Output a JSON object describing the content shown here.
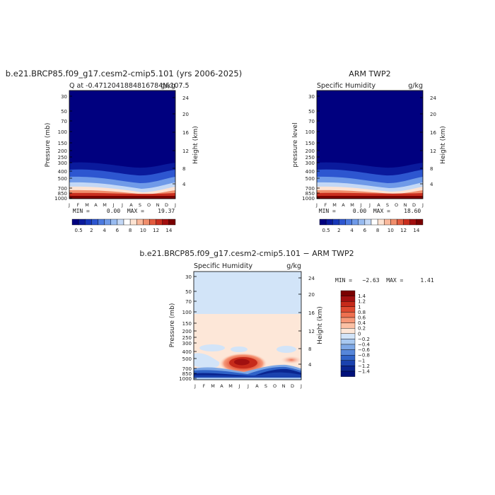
{
  "chart_data": [
    {
      "type": "heatmap",
      "title": "b.e21.BRCP85.f09_g17.cesm2-cmip5.101 (yrs 2006-2025)",
      "left_label": "Q  at  -0.4712041884816784N,107.5",
      "right_label": "g/kg",
      "ylabel": "Pressure (mb)",
      "y2label": "Height (km)",
      "pressure_ticks": [
        "30",
        "50",
        "70",
        "100",
        "150",
        "200",
        "250",
        "300",
        "400",
        "500",
        "700",
        "850",
        "1000"
      ],
      "height_ticks": [
        "24",
        "20",
        "16",
        "12",
        "8",
        "4"
      ],
      "month_ticks": [
        "J",
        "F",
        "M",
        "A",
        "M",
        "J",
        "J",
        "A",
        "S",
        "O",
        "N",
        "D",
        "J"
      ],
      "stats": "MIN =     0.00  MAX =    19.37",
      "colorbar_labels": [
        "0.5",
        "2",
        "4",
        "6",
        "8",
        "10",
        "12",
        "14"
      ],
      "colors": [
        "#00007f",
        "#0a1a9c",
        "#1737b8",
        "#2d56d0",
        "#4c7ae0",
        "#6f9ae8",
        "#98bbf0",
        "#c3d8f6",
        "#ffffff",
        "#fde3d2",
        "#f9b99c",
        "#f08e6c",
        "#e25a3e",
        "#c92e1e",
        "#a20f0f",
        "#7a0000"
      ]
    },
    {
      "type": "heatmap",
      "title": "ARM  TWP2",
      "left_label": "Specific  Humidity",
      "right_label": "g/kg",
      "ylabel": "pressure  level",
      "y2label": "Height (km)",
      "pressure_ticks": [
        "30",
        "50",
        "70",
        "100",
        "150",
        "200",
        "250",
        "300",
        "400",
        "500",
        "700",
        "850",
        "1000"
      ],
      "height_ticks": [
        "24",
        "20",
        "16",
        "12",
        "8",
        "4"
      ],
      "month_ticks": [
        "J",
        "F",
        "M",
        "A",
        "M",
        "J",
        "J",
        "A",
        "S",
        "O",
        "N",
        "D",
        "J"
      ],
      "stats": "MIN =     0.00  MAX =    18.60",
      "colorbar_labels": [
        "0.5",
        "2",
        "4",
        "6",
        "8",
        "10",
        "12",
        "14"
      ]
    },
    {
      "type": "heatmap",
      "title": "b.e21.BRCP85.f09_g17.cesm2-cmip5.101  −  ARM  TWP2",
      "left_label": "Specific  Humidity",
      "right_label": "g/kg",
      "ylabel": "Pressure (mb)",
      "y2label": "Height (km)",
      "pressure_ticks": [
        "30",
        "50",
        "70",
        "100",
        "150",
        "200",
        "250",
        "300",
        "400",
        "500",
        "700",
        "850",
        "1000"
      ],
      "height_ticks": [
        "24",
        "20",
        "16",
        "12",
        "8",
        "4"
      ],
      "month_ticks": [
        "J",
        "F",
        "M",
        "A",
        "M",
        "J",
        "J",
        "A",
        "S",
        "O",
        "N",
        "D",
        "J"
      ],
      "stats": "MIN =   −2.63  MAX =     1.41",
      "colorbar_labels": [
        "1.4",
        "1.2",
        "1",
        "0.8",
        "0.6",
        "0.4",
        "0.2",
        "0",
        "−0.2",
        "−0.4",
        "−0.6",
        "−0.8",
        "−1",
        "−1.2",
        "−1.4"
      ],
      "colors": [
        "#7a0000",
        "#a11010",
        "#c62a1a",
        "#de4a30",
        "#ee7050",
        "#f69878",
        "#fbc0a4",
        "#fde7d8",
        "#d2e4f8",
        "#a8c8f0",
        "#7ea8e6",
        "#5686da",
        "#3063c8",
        "#1a42ae",
        "#0a2590",
        "#00107a"
      ]
    }
  ]
}
